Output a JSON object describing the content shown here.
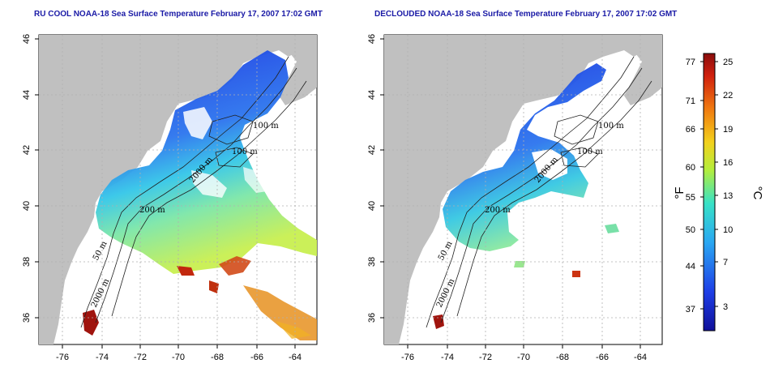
{
  "panels": [
    {
      "title": "RU COOL NOAA-18 Sea Surface Temperature February 17, 2007 17:02 GMT",
      "x_ticks": [
        "-76",
        "-74",
        "-72",
        "-70",
        "-68",
        "-66",
        "-64"
      ],
      "y_ticks": [
        "46",
        "44",
        "42",
        "40",
        "38",
        "36"
      ],
      "contour_labels": [
        "100 m",
        "100 m",
        "200 m",
        "50 m",
        "2000 m",
        "2000 m"
      ]
    },
    {
      "title": "DECLOUDED NOAA-18 Sea Surface Temperature February 17, 2007 17:02 GMT",
      "x_ticks": [
        "-76",
        "-74",
        "-72",
        "-70",
        "-68",
        "-66",
        "-64"
      ],
      "y_ticks": [
        "46",
        "44",
        "42",
        "40",
        "38",
        "36"
      ],
      "contour_labels": [
        "100 m",
        "100 m",
        "200 m",
        "50 m",
        "2000 m",
        "2000 m"
      ]
    }
  ],
  "colorbar": {
    "fahrenheit_label": "°F",
    "celsius_label": "°C",
    "fahrenheit_ticks": [
      "77",
      "71",
      "66",
      "60",
      "55",
      "50",
      "44",
      "37"
    ],
    "celsius_ticks": [
      "25",
      "22",
      "19",
      "16",
      "13",
      "10",
      "7",
      "3"
    ],
    "colors": [
      "#1010a0",
      "#1f3fe6",
      "#2aa7f0",
      "#36e0c8",
      "#b6ee3a",
      "#f2d01c",
      "#f07a10",
      "#d0200e",
      "#8a0d0d"
    ]
  }
}
